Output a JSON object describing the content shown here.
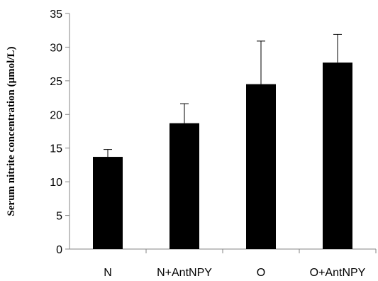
{
  "chart_data": {
    "type": "bar",
    "title": "",
    "xlabel": "",
    "ylabel": "Serum nitrite concentration (μmol/L)",
    "categories": [
      "N",
      "N+AntNPY",
      "O",
      "O+AntNPY"
    ],
    "values": [
      13.7,
      18.7,
      24.5,
      27.7
    ],
    "error_upper": [
      1.1,
      2.9,
      6.4,
      4.2
    ],
    "ylim": [
      0,
      35
    ],
    "yticks": [
      0,
      5,
      10,
      15,
      20,
      25,
      30,
      35
    ],
    "grid": false,
    "legend": "none",
    "bar_color": "#000000"
  }
}
